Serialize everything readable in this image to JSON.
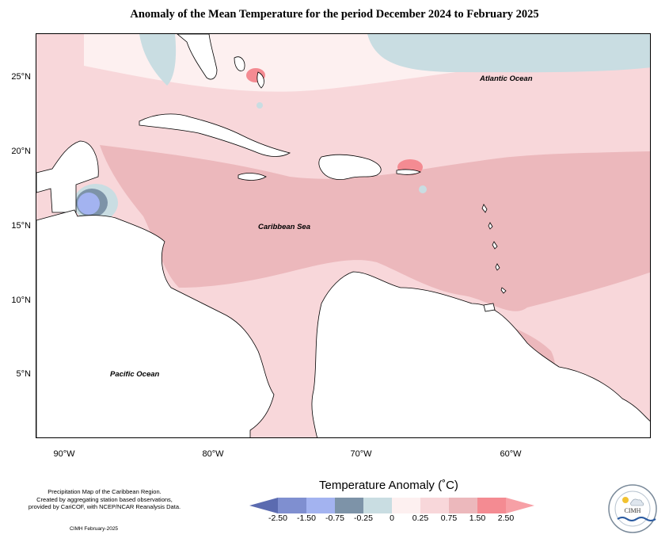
{
  "title": "Anomaly of the Mean Temperature for the period December 2024 to February 2025",
  "map": {
    "latitude_labels": [
      "25°N",
      "20°N",
      "15°N",
      "10°N",
      "5°N"
    ],
    "longitude_labels": [
      "90°W",
      "80°W",
      "70°W",
      "60°W"
    ],
    "region_labels": {
      "atlantic": "Atlantic Ocean",
      "caribbean": "Caribbean Sea",
      "pacific": "Pacific Ocean"
    }
  },
  "legend": {
    "title": "Temperature Anomaly (˚C)",
    "tick_labels": [
      "-2.50",
      "-1.50",
      "-0.75",
      "-0.25",
      "0",
      "0.25",
      "0.75",
      "1.50",
      "2.50"
    ],
    "colors": [
      "#5b6bb0",
      "#7f8fd0",
      "#a3b3f0",
      "#7d93a8",
      "#c9dde2",
      "#fdf0f0",
      "#f8d7da",
      "#ecb8bc",
      "#f48b92",
      "#f7a0a6"
    ]
  },
  "credits": {
    "line1": "Precipitation Map of the Caribbean Region.",
    "line2": "Created by aggregating station based observations,",
    "line3": "provided by CariCOF, with NCEP/NCAR Reanalysis Data.",
    "date": "CIMH February-2025"
  },
  "logo": {
    "text": "CIMH"
  }
}
